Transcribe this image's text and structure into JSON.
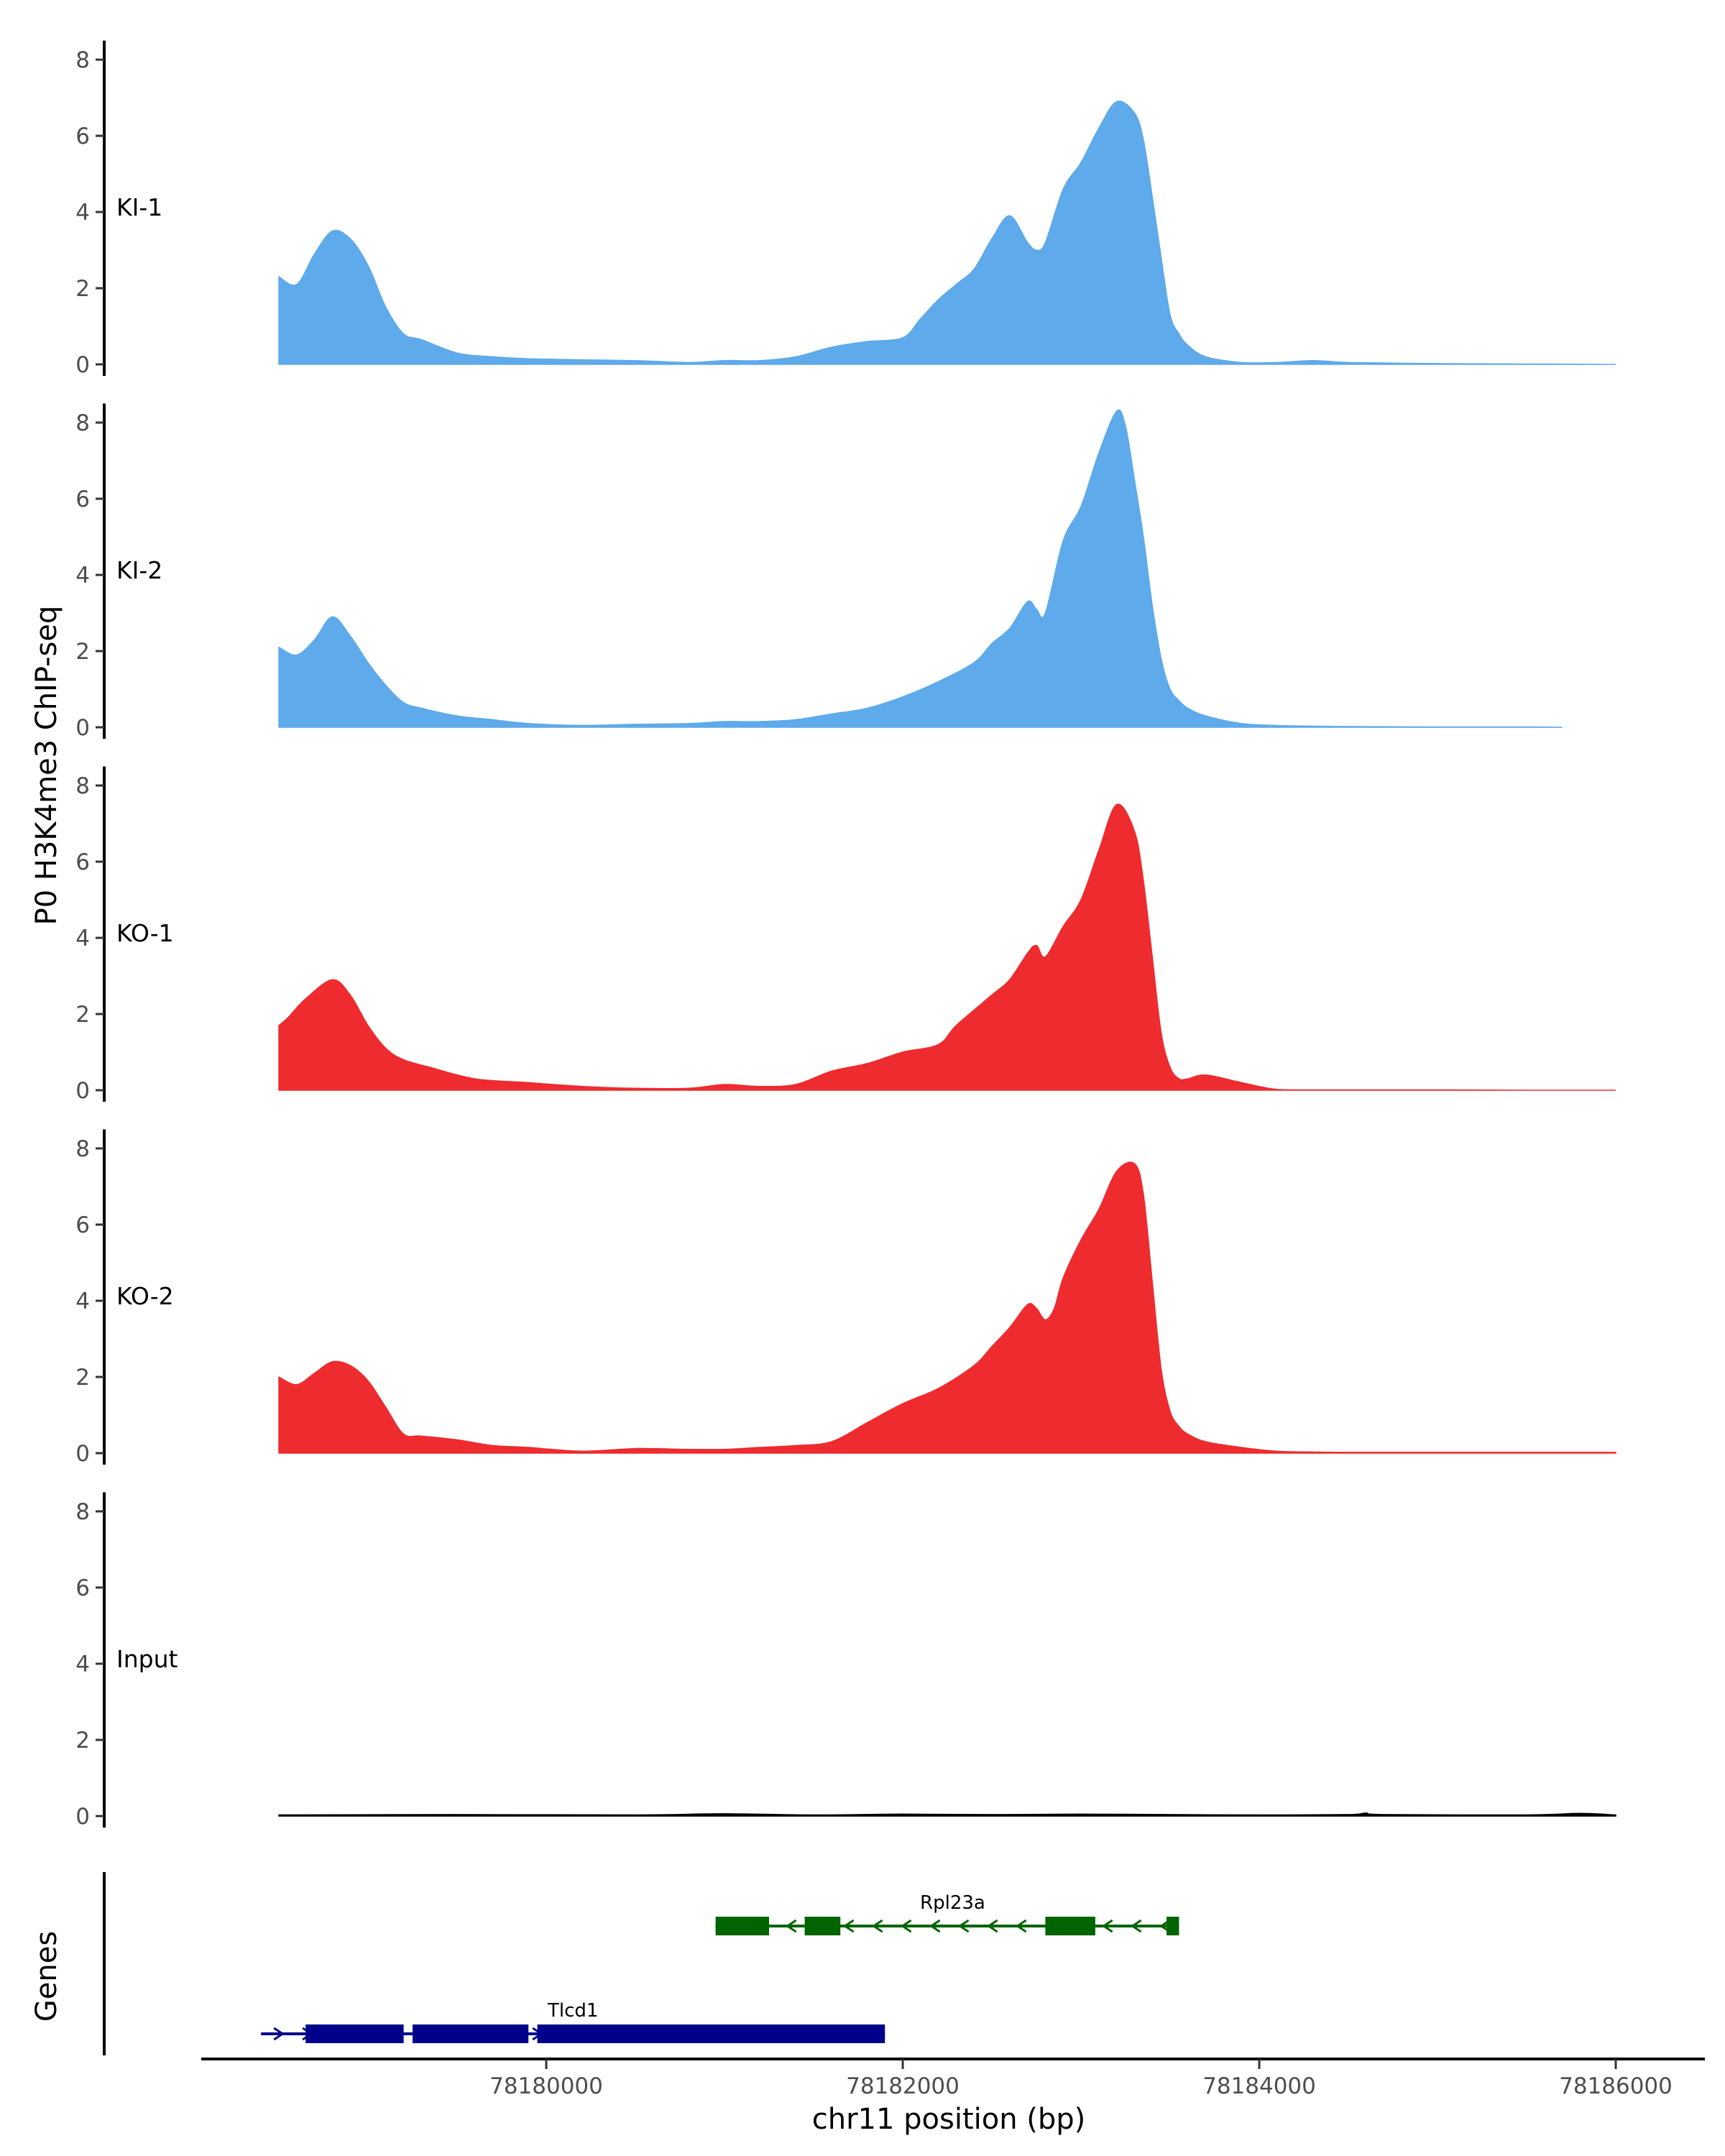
{
  "chart_data": {
    "type": "area",
    "ylabel": "P0 H3K4me3 ChIP-seq",
    "xlabel": "chr11 position (bp)",
    "ylim": [
      0,
      8.5
    ],
    "yticks": [
      0,
      2,
      4,
      6,
      8
    ],
    "xlim": [
      78177750,
      78186500
    ],
    "xticks": [
      78180000,
      78182000,
      78184000,
      78186000
    ],
    "grid": false,
    "tracks": [
      {
        "name": "KI-1",
        "color": "#5eaaea",
        "x": [
          78178500,
          78178600,
          78178700,
          78178800,
          78178900,
          78179000,
          78179100,
          78179200,
          78179300,
          78179500,
          78179700,
          78179900,
          78180200,
          78180500,
          78180800,
          78181000,
          78181200,
          78181400,
          78181600,
          78181800,
          78182000,
          78182100,
          78182200,
          78182300,
          78182400,
          78182500,
          78182600,
          78182700,
          78182750,
          78182800,
          78182900,
          78183000,
          78183100,
          78183200,
          78183300,
          78183350,
          78183400,
          78183450,
          78183500,
          78183550,
          78183600,
          78183700,
          78183900,
          78184100,
          78184300,
          78184500,
          78185000,
          78185500,
          78186000
        ],
        "values": [
          2.3,
          2.1,
          2.9,
          3.5,
          3.3,
          2.6,
          1.5,
          0.8,
          0.65,
          0.3,
          0.2,
          0.15,
          0.12,
          0.1,
          0.05,
          0.1,
          0.1,
          0.2,
          0.45,
          0.6,
          0.7,
          1.2,
          1.7,
          2.1,
          2.5,
          3.3,
          3.9,
          3.2,
          3.0,
          3.2,
          4.6,
          5.3,
          6.2,
          6.9,
          6.6,
          5.9,
          4.4,
          2.8,
          1.3,
          0.8,
          0.5,
          0.2,
          0.05,
          0.05,
          0.1,
          0.05,
          0.02,
          0.01,
          0.0
        ]
      },
      {
        "name": "KI-2",
        "color": "#5eaaea",
        "x": [
          78178500,
          78178600,
          78178700,
          78178800,
          78178900,
          78179000,
          78179100,
          78179200,
          78179300,
          78179500,
          78179700,
          78179900,
          78180200,
          78180500,
          78180800,
          78181000,
          78181200,
          78181400,
          78181600,
          78181800,
          78182000,
          78182200,
          78182400,
          78182500,
          78182600,
          78182700,
          78182750,
          78182800,
          78182900,
          78183000,
          78183100,
          78183200,
          78183250,
          78183300,
          78183350,
          78183400,
          78183450,
          78183500,
          78183550,
          78183600,
          78183700,
          78183900,
          78184100,
          78184300,
          78184500,
          78185000,
          78185500,
          78185700
        ],
        "values": [
          2.1,
          1.9,
          2.3,
          2.9,
          2.4,
          1.7,
          1.1,
          0.65,
          0.5,
          0.3,
          0.2,
          0.1,
          0.05,
          0.08,
          0.1,
          0.15,
          0.15,
          0.2,
          0.35,
          0.5,
          0.8,
          1.2,
          1.7,
          2.2,
          2.6,
          3.3,
          3.1,
          3.0,
          4.9,
          5.8,
          7.2,
          8.3,
          7.9,
          6.5,
          5.0,
          3.2,
          1.8,
          1.0,
          0.7,
          0.5,
          0.3,
          0.1,
          0.05,
          0.03,
          0.02,
          0.01,
          0.01,
          0.0
        ]
      },
      {
        "name": "KO-1",
        "color": "#ee2b2e",
        "x": [
          78178500,
          78178550,
          78178650,
          78178800,
          78178900,
          78179000,
          78179100,
          78179200,
          78179350,
          78179600,
          78179900,
          78180200,
          78180500,
          78180800,
          78181000,
          78181200,
          78181400,
          78181600,
          78181800,
          78182000,
          78182200,
          78182300,
          78182500,
          78182600,
          78182700,
          78182750,
          78182800,
          78182900,
          78183000,
          78183100,
          78183200,
          78183300,
          78183350,
          78183400,
          78183450,
          78183500,
          78183550,
          78183600,
          78183700,
          78183900,
          78184100,
          78184300,
          78185000,
          78185500,
          78186000
        ],
        "values": [
          1.7,
          1.9,
          2.4,
          2.9,
          2.5,
          1.7,
          1.1,
          0.8,
          0.6,
          0.3,
          0.2,
          0.1,
          0.05,
          0.05,
          0.15,
          0.1,
          0.15,
          0.5,
          0.7,
          1.0,
          1.2,
          1.7,
          2.5,
          2.9,
          3.6,
          3.8,
          3.5,
          4.3,
          5.0,
          6.3,
          7.5,
          6.8,
          5.5,
          3.5,
          1.5,
          0.6,
          0.3,
          0.3,
          0.4,
          0.2,
          0.02,
          0.01,
          0.01,
          0.0,
          0.0
        ]
      },
      {
        "name": "KO-2",
        "color": "#ee2b2e",
        "x": [
          78178500,
          78178600,
          78178700,
          78178800,
          78178900,
          78179000,
          78179100,
          78179200,
          78179300,
          78179500,
          78179700,
          78179900,
          78180200,
          78180500,
          78180800,
          78181000,
          78181200,
          78181400,
          78181600,
          78181800,
          78182000,
          78182200,
          78182400,
          78182500,
          78182600,
          78182700,
          78182750,
          78182800,
          78182850,
          78182900,
          78183000,
          78183100,
          78183200,
          78183300,
          78183350,
          78183400,
          78183450,
          78183500,
          78183550,
          78183600,
          78183700,
          78183900,
          78184100,
          78184300,
          78184500,
          78185000,
          78185500,
          78186000
        ],
        "values": [
          2.0,
          1.8,
          2.1,
          2.4,
          2.3,
          1.9,
          1.2,
          0.5,
          0.45,
          0.35,
          0.2,
          0.15,
          0.05,
          0.12,
          0.1,
          0.1,
          0.15,
          0.2,
          0.3,
          0.8,
          1.3,
          1.7,
          2.3,
          2.8,
          3.3,
          3.9,
          3.8,
          3.5,
          3.8,
          4.6,
          5.6,
          6.4,
          7.4,
          7.6,
          6.8,
          4.5,
          2.2,
          1.1,
          0.7,
          0.5,
          0.3,
          0.15,
          0.05,
          0.03,
          0.02,
          0.02,
          0.02,
          0.02
        ]
      },
      {
        "name": "Input",
        "color": "#000000",
        "x": [
          78178500,
          78179500,
          78180500,
          78181000,
          78181500,
          78182000,
          78182500,
          78183000,
          78183500,
          78184000,
          78184500,
          78184600,
          78184700,
          78185500,
          78185800,
          78186000
        ],
        "values": [
          0.03,
          0.04,
          0.03,
          0.06,
          0.03,
          0.05,
          0.04,
          0.05,
          0.04,
          0.03,
          0.04,
          0.08,
          0.04,
          0.03,
          0.07,
          0.03
        ]
      }
    ],
    "genes_label": "Genes",
    "genes": [
      {
        "name": "Rpl23a",
        "color": "#006400",
        "strand": "-",
        "start": 78180950,
        "end": 78183550,
        "exons": [
          [
            78180950,
            78181250
          ],
          [
            78181450,
            78181650
          ],
          [
            78182800,
            78183080
          ],
          [
            78183480,
            78183550
          ]
        ]
      },
      {
        "name": "Tlcd1",
        "color": "#00008b",
        "strand": "+",
        "start": 78178400,
        "end": 78181900,
        "exons": [
          [
            78178650,
            78179200
          ],
          [
            78179250,
            78179900
          ],
          [
            78179950,
            78181900
          ]
        ]
      }
    ]
  }
}
